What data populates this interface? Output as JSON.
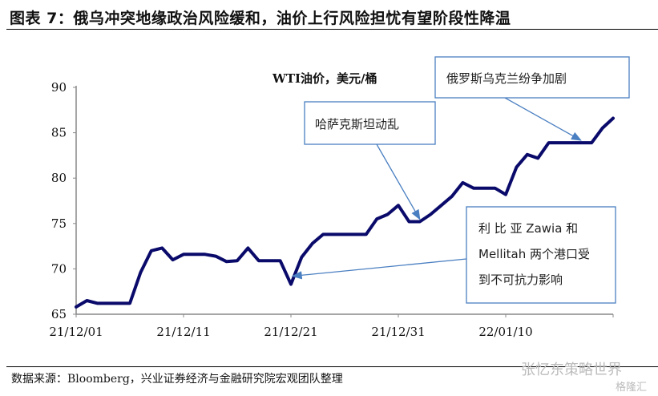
{
  "title": "图表 7：俄乌冲突地缘政治风险缓和，油价上行风险担忧有望阶段性降温",
  "footer": "数据来源：Bloomberg，兴业证券经济与金融研究院宏观团队整理",
  "watermarks": [
    "张忆东策略世界",
    "格隆汇"
  ],
  "chart_data": {
    "type": "line",
    "title": "WTI油价，美元/桶",
    "xlabel": "",
    "ylabel": "",
    "ylim": [
      65,
      90
    ],
    "yticks": [
      65,
      70,
      75,
      80,
      85,
      90
    ],
    "xlim_days": [
      0,
      50
    ],
    "xticks": [
      {
        "day": 0,
        "label": "21/12/01"
      },
      {
        "day": 10,
        "label": "21/12/11"
      },
      {
        "day": 20,
        "label": "21/12/21"
      },
      {
        "day": 30,
        "label": "21/12/31"
      },
      {
        "day": 40,
        "label": "22/01/10"
      }
    ],
    "series": [
      {
        "name": "WTI油价",
        "color": "#0a0a6b",
        "values": [
          65.8,
          66.5,
          66.2,
          66.2,
          66.2,
          66.2,
          69.6,
          72.0,
          72.3,
          71.0,
          71.6,
          71.6,
          71.6,
          71.4,
          70.8,
          70.9,
          72.3,
          70.9,
          70.9,
          70.9,
          68.3,
          71.3,
          72.8,
          73.8,
          73.8,
          73.8,
          73.8,
          73.8,
          75.5,
          76.0,
          77.0,
          75.2,
          75.2,
          76.0,
          77.0,
          78.0,
          79.5,
          78.9,
          78.9,
          78.9,
          78.2,
          81.2,
          82.6,
          82.2,
          83.9,
          83.9,
          83.9,
          83.9,
          83.9,
          85.5,
          86.6
        ]
      }
    ],
    "annotations": [
      {
        "text": "俄罗斯乌克兰纷争加剧",
        "day": 48
      },
      {
        "text": "哈萨克斯坦动乱",
        "day": 32
      },
      {
        "lines": [
          "利 比 亚  Zawia  和",
          "Mellitah 两个港口受",
          "到不可抗力影响"
        ],
        "day": 20
      }
    ],
    "grid": false,
    "legend": "none"
  }
}
